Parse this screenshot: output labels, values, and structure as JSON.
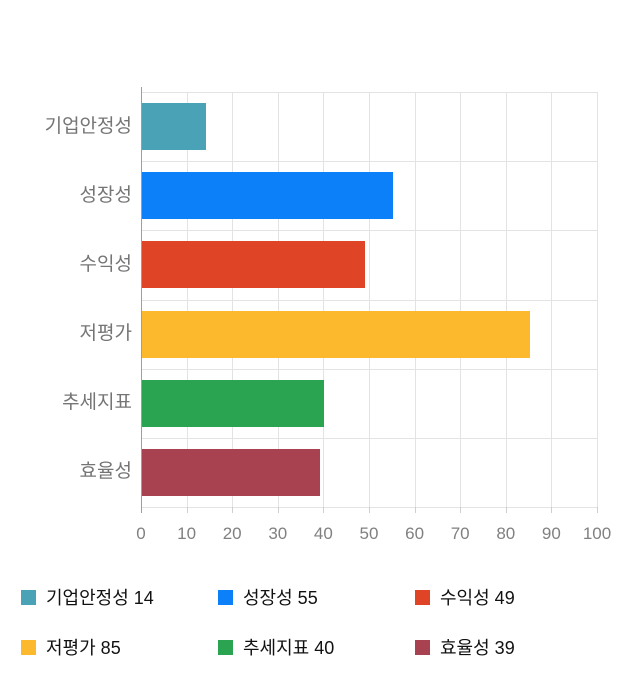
{
  "chart_data": {
    "type": "bar",
    "orientation": "horizontal",
    "title": "",
    "categories": [
      "기업안정성",
      "성장성",
      "수익성",
      "저평가",
      "추세지표",
      "효율성"
    ],
    "values": [
      14,
      55,
      49,
      85,
      40,
      39
    ],
    "colors": [
      "#49A2B5",
      "#0B80F8",
      "#DF4426",
      "#FDB92E",
      "#2BA452",
      "#A84250"
    ],
    "xlim": [
      0,
      100
    ],
    "xticks": [
      0,
      10,
      20,
      30,
      40,
      50,
      60,
      70,
      80,
      90,
      100
    ],
    "grid": true,
    "legend_position": "bottom",
    "legend_labels": [
      "기업안정성 14",
      "성장성 55",
      "수익성 49",
      "저평가 85",
      "추세지표 40",
      "효율성 39"
    ]
  },
  "style": {
    "background": "#ffffff",
    "gridline_color": "#e3e3e3",
    "axis_line_color": "#9e9e9e",
    "category_label_color": "#757575",
    "tick_label_color": "#808080",
    "legend_text_color": "#111111"
  }
}
